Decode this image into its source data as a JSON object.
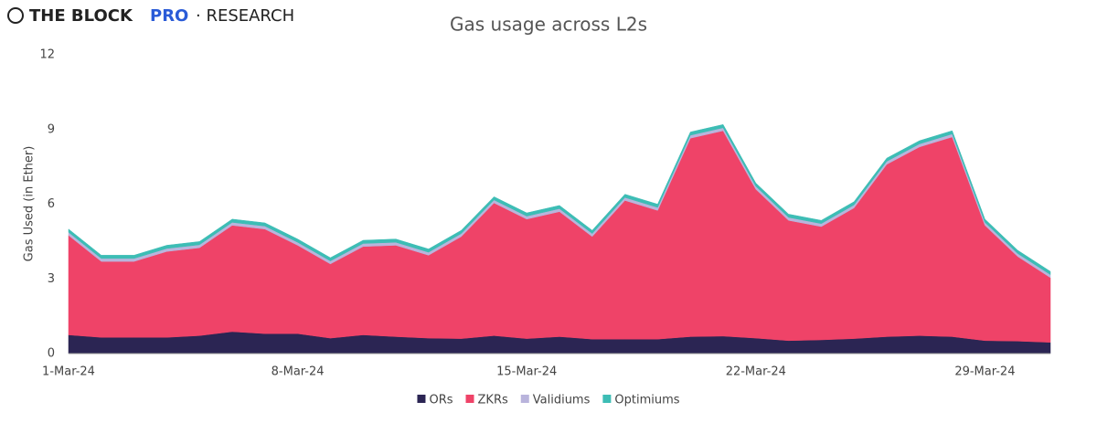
{
  "logo": {
    "brand": "THE BLOCK",
    "pro": "PRO",
    "section": "· RESEARCH"
  },
  "chart_data": {
    "type": "stacked-area",
    "title": "Gas usage across L2s",
    "y_label": "Gas Used (in Ether)",
    "categories": [
      "1-Mar-24",
      null,
      null,
      null,
      null,
      null,
      null,
      "8-Mar-24",
      null,
      null,
      null,
      null,
      null,
      null,
      "15-Mar-24",
      null,
      null,
      null,
      null,
      null,
      null,
      "22-Mar-24",
      null,
      null,
      null,
      null,
      null,
      null,
      "29-Mar-24",
      null,
      null
    ],
    "series": [
      {
        "name": "ORs",
        "color": "#2b2553",
        "values": [
          0.75,
          0.65,
          0.65,
          0.65,
          0.72,
          0.88,
          0.8,
          0.8,
          0.62,
          0.75,
          0.68,
          0.62,
          0.6,
          0.72,
          0.6,
          0.68,
          0.58,
          0.58,
          0.58,
          0.68,
          0.7,
          0.62,
          0.52,
          0.55,
          0.6,
          0.68,
          0.72,
          0.68,
          0.52,
          0.5,
          0.45
        ]
      },
      {
        "name": "ZKRs",
        "color": "#ef4368",
        "values": [
          4.0,
          3.05,
          3.05,
          3.45,
          3.53,
          4.27,
          4.2,
          3.55,
          2.98,
          3.55,
          3.67,
          3.33,
          4.1,
          5.33,
          4.8,
          5.02,
          4.12,
          5.57,
          5.17,
          7.97,
          8.25,
          5.98,
          4.83,
          4.55,
          5.25,
          6.92,
          7.58,
          8.02,
          4.63,
          3.4,
          2.6
        ]
      },
      {
        "name": "Validiums",
        "color": "#b9b4dc",
        "values": [
          0.12,
          0.12,
          0.12,
          0.12,
          0.12,
          0.12,
          0.12,
          0.12,
          0.12,
          0.12,
          0.12,
          0.12,
          0.12,
          0.12,
          0.12,
          0.12,
          0.12,
          0.12,
          0.12,
          0.12,
          0.12,
          0.12,
          0.12,
          0.12,
          0.12,
          0.12,
          0.12,
          0.12,
          0.12,
          0.12,
          0.12
        ]
      },
      {
        "name": "Optimiums",
        "color": "#3dbdb5",
        "values": [
          0.13,
          0.13,
          0.13,
          0.13,
          0.13,
          0.13,
          0.13,
          0.13,
          0.13,
          0.13,
          0.13,
          0.13,
          0.13,
          0.13,
          0.13,
          0.13,
          0.13,
          0.13,
          0.13,
          0.13,
          0.13,
          0.13,
          0.13,
          0.13,
          0.13,
          0.13,
          0.13,
          0.13,
          0.13,
          0.13,
          0.13
        ]
      }
    ],
    "ylim": [
      0,
      12
    ],
    "yticks": [
      0,
      3,
      6,
      9,
      12
    ],
    "grid": false
  }
}
